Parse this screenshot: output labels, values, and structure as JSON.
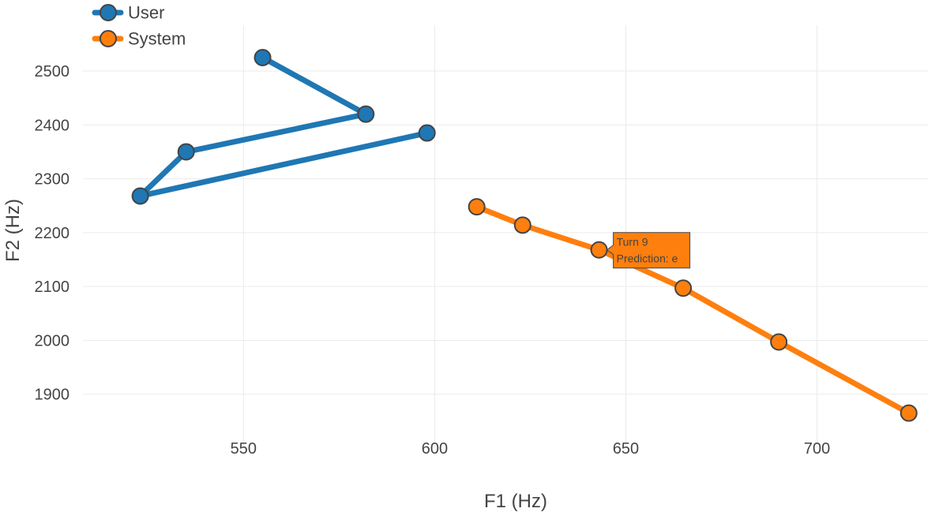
{
  "chart_data": {
    "type": "line",
    "xlabel": "F1 (Hz)",
    "ylabel": "F2 (Hz)",
    "xlim": [
      508,
      729
    ],
    "ylim": [
      1800,
      2585
    ],
    "xticks": [
      550,
      600,
      650,
      700
    ],
    "yticks": [
      1900,
      2000,
      2100,
      2200,
      2300,
      2400,
      2500
    ],
    "grid": true,
    "legend_position": "top-left",
    "series": [
      {
        "name": "User",
        "color": "#1f77b4",
        "x": [
          555,
          582,
          535,
          523,
          598
        ],
        "y": [
          2525,
          2420,
          2350,
          2268,
          2385
        ]
      },
      {
        "name": "System",
        "color": "#ff7f0e",
        "x": [
          611,
          623,
          643,
          665,
          690,
          724
        ],
        "y": [
          2248,
          2214,
          2168,
          2097,
          1997,
          1865
        ]
      }
    ],
    "tooltip": {
      "series": "System",
      "point_index": 2,
      "lines": [
        "Turn 9",
        "Prediction: e"
      ]
    }
  }
}
